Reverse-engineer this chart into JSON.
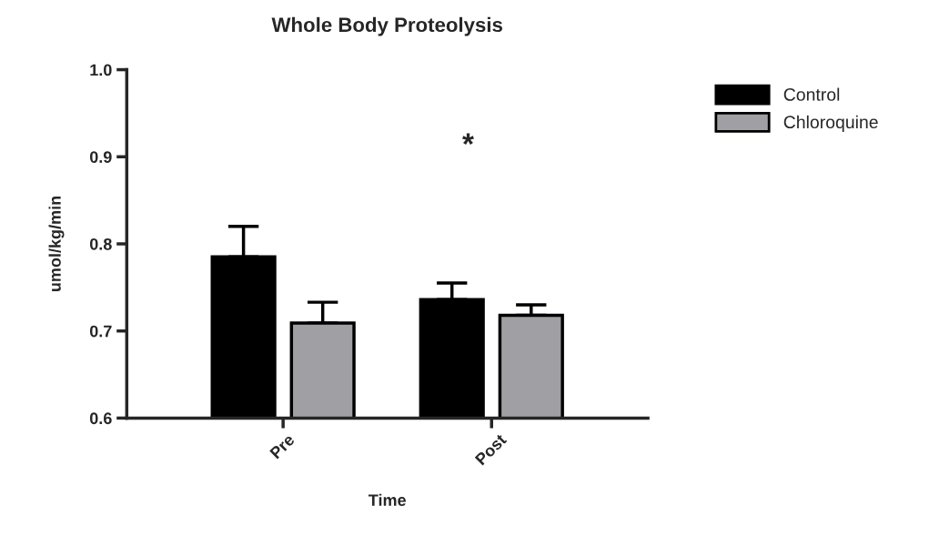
{
  "chart_data": {
    "type": "bar",
    "title": "Whole Body Proteolysis",
    "xlabel": "Time",
    "ylabel": "umol/kg/min",
    "categories": [
      "Pre",
      "Post"
    ],
    "series": [
      {
        "name": "Control",
        "color": "#000000",
        "values": [
          0.785,
          0.736
        ],
        "errors": [
          [
            0.785,
            0.82
          ],
          [
            0.736,
            0.755
          ]
        ]
      },
      {
        "name": "Chloroquine",
        "color": "#a0a0a4",
        "values": [
          0.709,
          0.718
        ],
        "errors": [
          [
            0.709,
            0.733
          ],
          [
            0.718,
            0.73
          ]
        ]
      }
    ],
    "ylim": [
      0.6,
      1.0
    ],
    "yticks": [
      0.6,
      0.7,
      0.8,
      0.9,
      {
        "value": 1.0,
        "label": "1.0"
      }
    ],
    "annotations": [
      "*"
    ],
    "grid": false,
    "legend": "top right"
  }
}
